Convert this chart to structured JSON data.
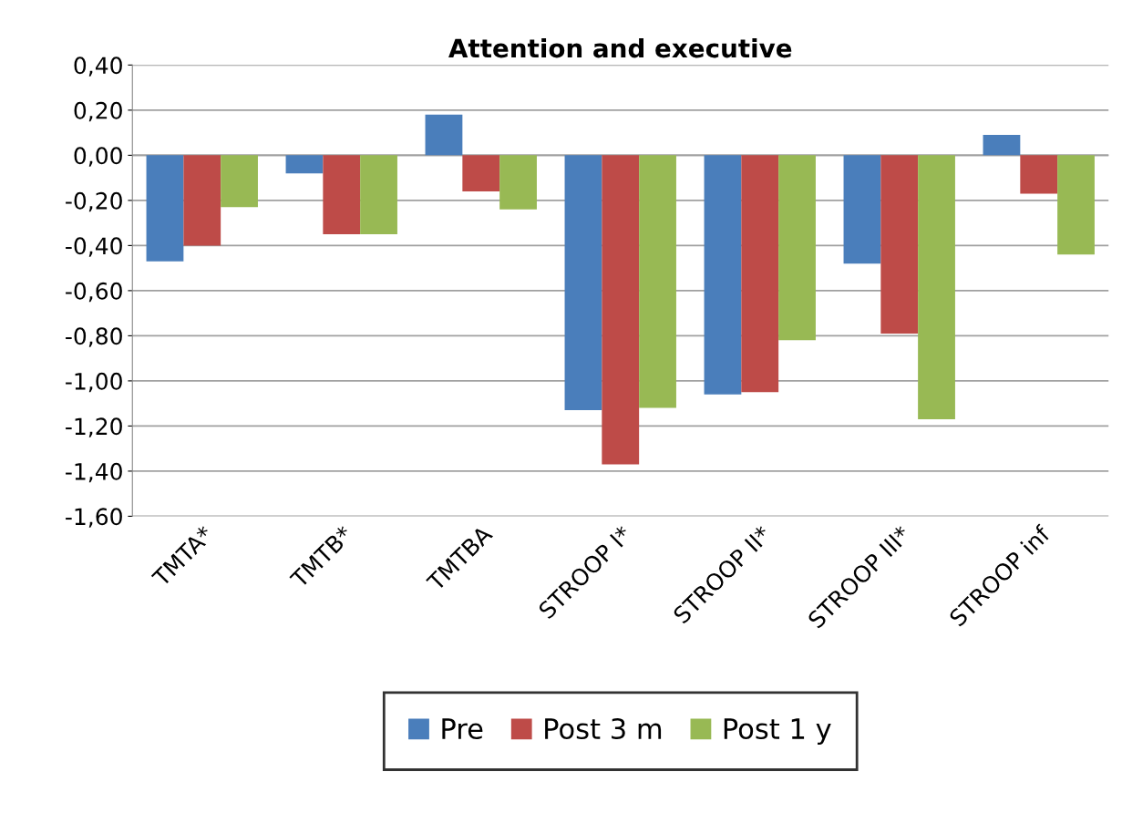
{
  "chart_data": {
    "type": "bar",
    "title": "Attention and executive",
    "categories": [
      "TMTA*",
      "TMTB*",
      "TMTBA",
      "STROOP I*",
      "STROOP II*",
      "STROOP III*",
      "STROOP inf"
    ],
    "series": [
      {
        "name": "Pre",
        "color": "#4a7ebb",
        "values": [
          -0.47,
          -0.08,
          0.18,
          -1.13,
          -1.06,
          -0.48,
          0.09
        ]
      },
      {
        "name": "Post 3 m",
        "color": "#be4b48",
        "values": [
          -0.4,
          -0.35,
          -0.16,
          -1.37,
          -1.05,
          -0.79,
          -0.17
        ]
      },
      {
        "name": "Post 1 y",
        "color": "#98b954",
        "values": [
          -0.23,
          -0.35,
          -0.24,
          -1.12,
          -0.82,
          -1.17,
          -0.44
        ]
      }
    ],
    "ylim": [
      -1.6,
      0.4
    ],
    "yticks": [
      {
        "value": 0.4,
        "label": "0,40"
      },
      {
        "value": 0.2,
        "label": "0,20"
      },
      {
        "value": 0,
        "label": "0,00"
      },
      {
        "value": -0.2,
        "label": "-0,20"
      },
      {
        "value": -0.4,
        "label": "-0,40"
      },
      {
        "value": -0.6,
        "label": "-0,60"
      },
      {
        "value": -0.8,
        "label": "-0,80"
      },
      {
        "value": -1.0,
        "label": "-1,00"
      },
      {
        "value": -1.2,
        "label": "-1,20"
      },
      {
        "value": -1.4,
        "label": "-1,40"
      },
      {
        "value": -1.6,
        "label": "-1,60"
      }
    ],
    "grid": "y",
    "legend": "bottom"
  }
}
